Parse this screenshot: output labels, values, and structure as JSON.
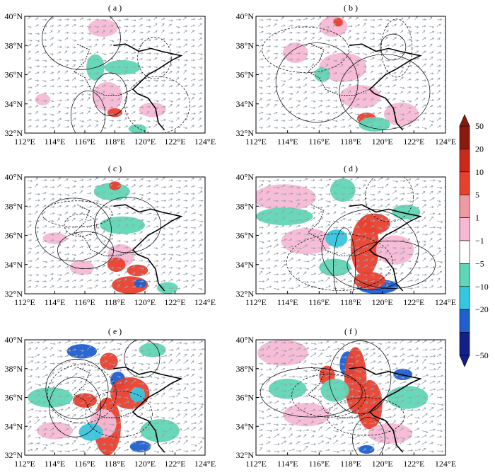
{
  "panels": [
    {
      "label": "( a )",
      "density": 0.35
    },
    {
      "label": "( b )",
      "density": 0.4
    },
    {
      "label": "( c )",
      "density": 0.45
    },
    {
      "label": "( d )",
      "density": 0.8
    },
    {
      "label": "( e )",
      "density": 0.9
    },
    {
      "label": "( f )",
      "density": 1.0
    }
  ],
  "chart_data": {
    "type": "heatmap",
    "x_ticks": [
      "112°E",
      "114°E",
      "116°E",
      "118°E",
      "120°E",
      "122°E",
      "124°E"
    ],
    "y_ticks": [
      "32°N",
      "34°N",
      "36°N",
      "38°N",
      "40°N"
    ],
    "xlim": [
      112,
      124
    ],
    "ylim": [
      32,
      40
    ],
    "colorbar": {
      "labels": [
        "50",
        "20",
        "10",
        "5",
        "1",
        "−1",
        "−5",
        "−10",
        "−20",
        "−50"
      ],
      "levels": [
        50,
        20,
        10,
        5,
        1,
        -1,
        -5,
        -10,
        -20,
        -50
      ],
      "colors": [
        "#8b1a0e",
        "#c9291a",
        "#e8402e",
        "#ee9aa3",
        "#f7b8d4",
        "#ffffff",
        "#5fd6b4",
        "#33c8e0",
        "#1f5fd0",
        "#13208a"
      ]
    },
    "vector_color": "#9aa3b0",
    "contour_color": "#000000",
    "coast_color": "#000000"
  }
}
